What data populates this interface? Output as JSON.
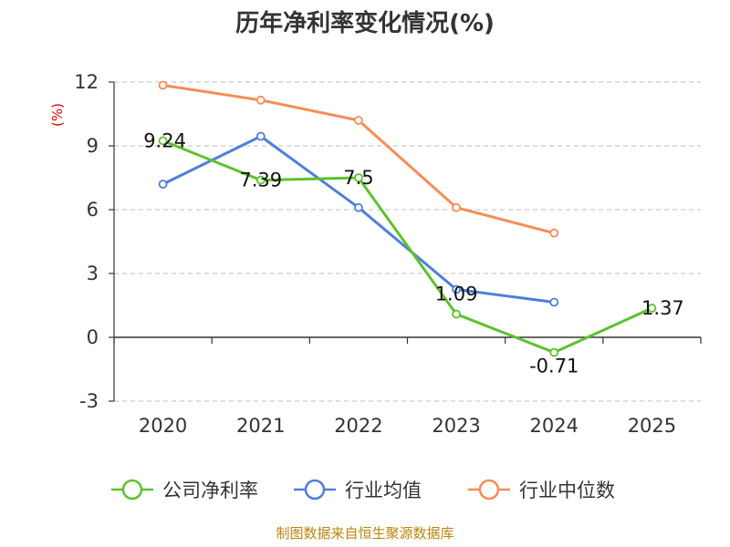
{
  "chart_data": {
    "type": "line",
    "title": "历年净利率变化情况(%)",
    "ylabel": "(%)",
    "categories": [
      "2020",
      "2021",
      "2022",
      "2023",
      "2024",
      "2025"
    ],
    "ylim": [
      -3,
      12
    ],
    "yticks": [
      "12",
      "9",
      "6",
      "3",
      "0",
      "-3"
    ],
    "ytick_values": [
      12,
      9,
      6,
      3,
      0,
      -3
    ],
    "grid": true,
    "legend_position": "bottom",
    "series": [
      {
        "name": "公司净利率",
        "color": "#5cc22f",
        "values": [
          9.24,
          7.39,
          7.5,
          1.09,
          -0.71,
          1.37
        ],
        "labels": [
          "9.24",
          "7.39",
          "7.5",
          "1.09",
          "-0.71",
          "1.37"
        ]
      },
      {
        "name": "行业均值",
        "color": "#4e7fdb",
        "values": [
          7.2,
          9.45,
          6.1,
          2.25,
          1.65,
          null
        ]
      },
      {
        "name": "行业中位数",
        "color": "#f58d58",
        "values": [
          11.85,
          11.15,
          10.2,
          6.1,
          4.9,
          null
        ]
      }
    ]
  },
  "source": "制图数据来自恒生聚源数据库"
}
